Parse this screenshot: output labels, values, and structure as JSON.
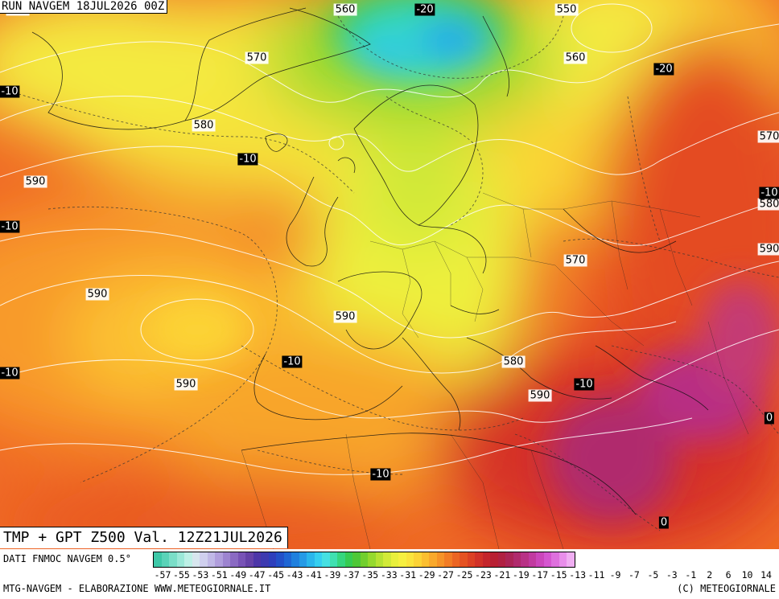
{
  "header": {
    "run_label": "RUN NAVGEM 18JUL2026 00Z"
  },
  "map": {
    "valid_label": "TMP + GPT Z500 Val. 12Z21JUL2026",
    "geopotential_labels": [
      {
        "text": "550",
        "lon": -42,
        "lat": 71
      },
      {
        "text": "560",
        "lon": -5,
        "lat": 73
      },
      {
        "text": "570",
        "lon": -15,
        "lat": 65
      },
      {
        "text": "550",
        "lon": 20,
        "lat": 71
      },
      {
        "text": "580",
        "lon": -21,
        "lat": 59
      },
      {
        "text": "560",
        "lon": 21,
        "lat": 65
      },
      {
        "text": "590",
        "lon": -40,
        "lat": 54
      },
      {
        "text": "570",
        "lon": 58,
        "lat": 58
      },
      {
        "text": "590",
        "lon": -33,
        "lat": 44
      },
      {
        "text": "580",
        "lon": 62,
        "lat": 52
      },
      {
        "text": "590",
        "lon": 68,
        "lat": 48
      },
      {
        "text": "590",
        "lon": -5,
        "lat": 42
      },
      {
        "text": "570",
        "lon": 21,
        "lat": 47
      },
      {
        "text": "580",
        "lon": 14,
        "lat": 38
      },
      {
        "text": "590",
        "lon": 17,
        "lat": 35
      },
      {
        "text": "590",
        "lon": -23,
        "lat": 36
      }
    ],
    "temperature_labels": [
      {
        "text": "-20",
        "lon": 4,
        "lat": 74
      },
      {
        "text": "-10",
        "lon": -47,
        "lat": 62
      },
      {
        "text": "-10",
        "lon": -16,
        "lat": 56
      },
      {
        "text": "-20",
        "lon": 31,
        "lat": 64
      },
      {
        "text": "-10",
        "lon": -44,
        "lat": 50
      },
      {
        "text": "-10",
        "lon": 57,
        "lat": 53
      },
      {
        "text": "-10",
        "lon": -11,
        "lat": 38
      },
      {
        "text": "-10",
        "lon": -45,
        "lat": 37
      },
      {
        "text": "-10",
        "lon": 22,
        "lat": 36
      },
      {
        "text": "0",
        "lon": 44,
        "lat": 33
      },
      {
        "text": "-10",
        "lon": -1,
        "lat": 28
      },
      {
        "text": "0",
        "lon": 31,
        "lat": 23
      }
    ]
  },
  "colorbar": {
    "source_label": "DATI FNMOC NAVGEM 0.5°",
    "colors": [
      "#3ec8a8",
      "#5ad3b8",
      "#7adec8",
      "#9be8d8",
      "#bdf0e6",
      "#d7e6ee",
      "#cfcfee",
      "#c0b8e6",
      "#b09edc",
      "#9d84d0",
      "#8a6ac3",
      "#7853b6",
      "#6642a8",
      "#4d36a8",
      "#3d3ab0",
      "#2e3fbc",
      "#2350c8",
      "#1f66d4",
      "#2080de",
      "#259ae6",
      "#2ab6ec",
      "#35cff0",
      "#46e0e2",
      "#3fe0b0",
      "#35d67e",
      "#36cc52",
      "#4ec838",
      "#72cf2e",
      "#95d92e",
      "#b6e233",
      "#d2ea38",
      "#e9f03c",
      "#f7f040",
      "#fbe43c",
      "#fcd336",
      "#fbbf30",
      "#f9a92c",
      "#f69328",
      "#f27c25",
      "#ec6523",
      "#e55222",
      "#dc4124",
      "#d13228",
      "#c4262c",
      "#b81f33",
      "#b02042",
      "#ab2456",
      "#b02a6d",
      "#b83286",
      "#c13aa0",
      "#cb46bb",
      "#d556d0",
      "#de70de",
      "#e88eea",
      "#f0aef2"
    ],
    "ticks": [
      "-57",
      "-55",
      "-53",
      "-51",
      "-49",
      "-47",
      "-45",
      "-43",
      "-41",
      "-39",
      "-37",
      "-35",
      "-33",
      "-31",
      "-29",
      "-27",
      "-25",
      "-23",
      "-21",
      "-19",
      "-17",
      "-15",
      "-13",
      "-11",
      "-9",
      "-7",
      "-5",
      "-3",
      "-1",
      "2",
      "6",
      "10",
      "14"
    ]
  },
  "footer": {
    "left": "MTG-NAVGEM - ELABORAZIONE WWW.METEOGIORNALE.IT",
    "right": "(C) METEOGIORNALE"
  }
}
